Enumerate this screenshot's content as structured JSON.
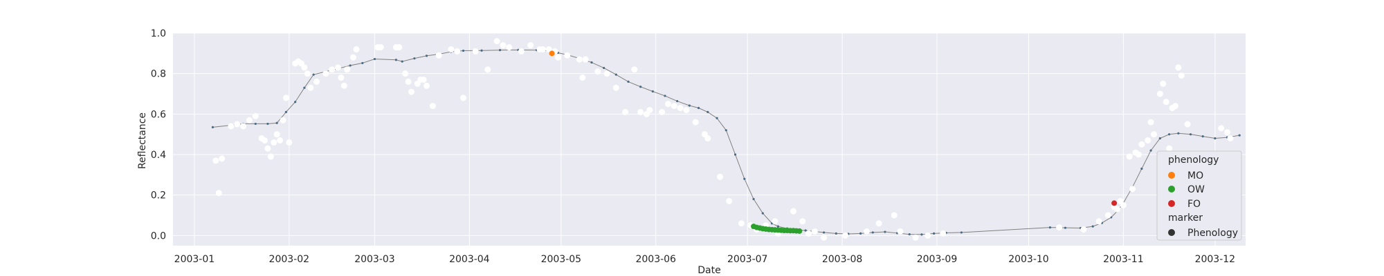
{
  "chart_data": {
    "type": "scatter",
    "xlabel": "Date",
    "ylabel": "Reflectance",
    "x_range_days": [
      -7,
      344
    ],
    "ylim": [
      -0.05,
      1.0
    ],
    "x_ticks": [
      {
        "day": 0,
        "label": "2003-01"
      },
      {
        "day": 31,
        "label": "2003-02"
      },
      {
        "day": 59,
        "label": "2003-03"
      },
      {
        "day": 90,
        "label": "2003-04"
      },
      {
        "day": 120,
        "label": "2003-05"
      },
      {
        "day": 151,
        "label": "2003-06"
      },
      {
        "day": 181,
        "label": "2003-07"
      },
      {
        "day": 212,
        "label": "2003-08"
      },
      {
        "day": 243,
        "label": "2003-09"
      },
      {
        "day": 273,
        "label": "2003-10"
      },
      {
        "day": 304,
        "label": "2003-11"
      },
      {
        "day": 334,
        "label": "2003-12"
      }
    ],
    "y_ticks": [
      {
        "value": 0.0,
        "label": "0.0"
      },
      {
        "value": 0.2,
        "label": "0.2"
      },
      {
        "value": 0.4,
        "label": "0.4"
      },
      {
        "value": 0.6,
        "label": "0.6"
      },
      {
        "value": 0.8,
        "label": "0.8"
      },
      {
        "value": 1.0,
        "label": "1.0"
      }
    ],
    "smoothed_series": {
      "color": "#4c6a80",
      "points": [
        [
          6,
          0.535
        ],
        [
          12,
          0.545
        ],
        [
          16,
          0.552
        ],
        [
          20,
          0.552
        ],
        [
          24,
          0.552
        ],
        [
          27,
          0.556
        ],
        [
          30,
          0.61
        ],
        [
          33,
          0.66
        ],
        [
          36,
          0.73
        ],
        [
          39,
          0.795
        ],
        [
          43,
          0.81
        ],
        [
          47,
          0.825
        ],
        [
          51,
          0.84
        ],
        [
          55,
          0.852
        ],
        [
          59,
          0.872
        ],
        [
          66,
          0.868
        ],
        [
          68,
          0.86
        ],
        [
          72,
          0.875
        ],
        [
          76,
          0.888
        ],
        [
          80,
          0.896
        ],
        [
          84,
          0.908
        ],
        [
          88,
          0.913
        ],
        [
          94,
          0.914
        ],
        [
          100,
          0.916
        ],
        [
          106,
          0.917
        ],
        [
          112,
          0.916
        ],
        [
          116,
          0.912
        ],
        [
          119,
          0.903
        ],
        [
          122,
          0.893
        ],
        [
          126,
          0.875
        ],
        [
          130,
          0.855
        ],
        [
          134,
          0.828
        ],
        [
          138,
          0.795
        ],
        [
          142,
          0.76
        ],
        [
          146,
          0.735
        ],
        [
          150,
          0.712
        ],
        [
          154,
          0.69
        ],
        [
          158,
          0.664
        ],
        [
          162,
          0.642
        ],
        [
          165,
          0.63
        ],
        [
          168,
          0.61
        ],
        [
          171,
          0.58
        ],
        [
          174,
          0.52
        ],
        [
          177,
          0.4
        ],
        [
          180,
          0.28
        ],
        [
          183,
          0.18
        ],
        [
          186,
          0.11
        ],
        [
          189,
          0.06
        ],
        [
          191,
          0.045
        ],
        [
          194,
          0.035
        ],
        [
          197,
          0.028
        ],
        [
          200,
          0.025
        ],
        [
          203,
          0.02
        ],
        [
          206,
          0.015
        ],
        [
          210,
          0.01
        ],
        [
          214,
          0.008
        ],
        [
          218,
          0.01
        ],
        [
          222,
          0.015
        ],
        [
          226,
          0.018
        ],
        [
          230,
          0.012
        ],
        [
          234,
          0.006
        ],
        [
          238,
          0.005
        ],
        [
          242,
          0.01
        ],
        [
          246,
          0.013
        ],
        [
          251,
          0.015
        ],
        [
          280,
          0.04
        ],
        [
          285,
          0.038
        ],
        [
          290,
          0.037
        ],
        [
          294,
          0.045
        ],
        [
          297,
          0.062
        ],
        [
          300,
          0.09
        ],
        [
          302,
          0.12
        ],
        [
          304,
          0.16
        ],
        [
          307,
          0.24
        ],
        [
          310,
          0.33
        ],
        [
          313,
          0.42
        ],
        [
          316,
          0.48
        ],
        [
          319,
          0.5
        ],
        [
          322,
          0.505
        ],
        [
          326,
          0.5
        ],
        [
          330,
          0.49
        ],
        [
          334,
          0.48
        ],
        [
          338,
          0.485
        ],
        [
          342,
          0.495
        ]
      ]
    },
    "raw_points": {
      "color": "#ffffff",
      "points": [
        [
          7,
          0.37
        ],
        [
          8,
          0.21
        ],
        [
          9,
          0.38
        ],
        [
          12,
          0.54
        ],
        [
          14,
          0.55
        ],
        [
          16,
          0.54
        ],
        [
          18,
          0.57
        ],
        [
          20,
          0.59
        ],
        [
          22,
          0.48
        ],
        [
          23,
          0.47
        ],
        [
          24,
          0.43
        ],
        [
          25,
          0.39
        ],
        [
          26,
          0.46
        ],
        [
          27,
          0.5
        ],
        [
          28,
          0.47
        ],
        [
          29,
          0.57
        ],
        [
          30,
          0.68
        ],
        [
          31,
          0.46
        ],
        [
          33,
          0.85
        ],
        [
          34,
          0.86
        ],
        [
          35,
          0.85
        ],
        [
          36,
          0.83
        ],
        [
          37,
          0.8
        ],
        [
          38,
          0.73
        ],
        [
          40,
          0.76
        ],
        [
          43,
          0.8
        ],
        [
          45,
          0.82
        ],
        [
          47,
          0.83
        ],
        [
          48,
          0.78
        ],
        [
          49,
          0.74
        ],
        [
          50,
          0.82
        ],
        [
          52,
          0.88
        ],
        [
          53,
          0.92
        ],
        [
          60,
          0.93
        ],
        [
          61,
          0.93
        ],
        [
          66,
          0.93
        ],
        [
          67,
          0.93
        ],
        [
          69,
          0.8
        ],
        [
          70,
          0.76
        ],
        [
          71,
          0.71
        ],
        [
          73,
          0.75
        ],
        [
          74,
          0.77
        ],
        [
          75,
          0.77
        ],
        [
          76,
          0.74
        ],
        [
          78,
          0.64
        ],
        [
          80,
          0.89
        ],
        [
          84,
          0.92
        ],
        [
          86,
          0.91
        ],
        [
          88,
          0.68
        ],
        [
          92,
          0.91
        ],
        [
          96,
          0.82
        ],
        [
          99,
          0.96
        ],
        [
          101,
          0.94
        ],
        [
          103,
          0.93
        ],
        [
          107,
          0.91
        ],
        [
          110,
          0.94
        ],
        [
          113,
          0.92
        ],
        [
          114,
          0.92
        ],
        [
          116,
          0.92
        ],
        [
          118,
          0.91
        ],
        [
          119,
          0.88
        ],
        [
          122,
          0.89
        ],
        [
          126,
          0.87
        ],
        [
          127,
          0.78
        ],
        [
          128,
          0.87
        ],
        [
          132,
          0.81
        ],
        [
          135,
          0.8
        ],
        [
          138,
          0.73
        ],
        [
          141,
          0.61
        ],
        [
          144,
          0.82
        ],
        [
          146,
          0.61
        ],
        [
          148,
          0.6
        ],
        [
          149,
          0.62
        ],
        [
          153,
          0.61
        ],
        [
          155,
          0.65
        ],
        [
          157,
          0.64
        ],
        [
          159,
          0.63
        ],
        [
          161,
          0.62
        ],
        [
          164,
          0.56
        ],
        [
          167,
          0.5
        ],
        [
          168,
          0.48
        ],
        [
          172,
          0.29
        ],
        [
          175,
          0.17
        ],
        [
          179,
          0.06
        ],
        [
          182,
          0.05
        ],
        [
          184,
          0.03
        ],
        [
          187,
          0.05
        ],
        [
          190,
          0.07
        ],
        [
          191,
          0.01
        ],
        [
          196,
          0.12
        ],
        [
          199,
          0.07
        ],
        [
          201,
          0.01
        ],
        [
          203,
          0.02
        ],
        [
          206,
          -0.01
        ],
        [
          213,
          0.0
        ],
        [
          220,
          0.02
        ],
        [
          224,
          0.06
        ],
        [
          229,
          0.1
        ],
        [
          231,
          0.02
        ],
        [
          236,
          -0.01
        ],
        [
          240,
          0.0
        ],
        [
          245,
          0.01
        ],
        [
          283,
          0.04
        ],
        [
          291,
          0.03
        ],
        [
          296,
          0.07
        ],
        [
          299,
          0.1
        ],
        [
          301,
          0.14
        ],
        [
          302,
          0.13
        ],
        [
          303,
          0.17
        ],
        [
          304,
          0.15
        ],
        [
          306,
          0.39
        ],
        [
          307,
          0.23
        ],
        [
          308,
          0.41
        ],
        [
          309,
          0.4
        ],
        [
          310,
          0.45
        ],
        [
          312,
          0.47
        ],
        [
          313,
          0.56
        ],
        [
          314,
          0.5
        ],
        [
          316,
          0.7
        ],
        [
          317,
          0.75
        ],
        [
          318,
          0.66
        ],
        [
          319,
          0.43
        ],
        [
          320,
          0.63
        ],
        [
          321,
          0.64
        ],
        [
          322,
          0.83
        ],
        [
          323,
          0.79
        ],
        [
          325,
          0.55
        ],
        [
          336,
          0.53
        ],
        [
          338,
          0.51
        ],
        [
          339,
          0.48
        ]
      ]
    },
    "phenology_points": [
      {
        "label": "MO",
        "color": "#ff7f0e",
        "points": [
          [
            117,
            0.9
          ]
        ]
      },
      {
        "label": "OW",
        "color": "#2ca02c",
        "points": [
          [
            183,
            0.045
          ],
          [
            184,
            0.04
          ],
          [
            185,
            0.037
          ],
          [
            186,
            0.034
          ],
          [
            187,
            0.032
          ],
          [
            188,
            0.03
          ],
          [
            189,
            0.029
          ],
          [
            190,
            0.028
          ],
          [
            191,
            0.027
          ],
          [
            192,
            0.026
          ],
          [
            193,
            0.025
          ],
          [
            194,
            0.025
          ],
          [
            195,
            0.024
          ],
          [
            196,
            0.024
          ],
          [
            197,
            0.023
          ],
          [
            198,
            0.022
          ]
        ]
      },
      {
        "label": "FO",
        "color": "#d62728",
        "points": [
          [
            301,
            0.16
          ]
        ]
      }
    ],
    "legend": {
      "position": "lower-right",
      "hue_title": "phenology",
      "hue_entries": [
        {
          "label": "MO",
          "color": "#ff7f0e"
        },
        {
          "label": "OW",
          "color": "#2ca02c"
        },
        {
          "label": "FO",
          "color": "#d62728"
        }
      ],
      "style_title": "marker",
      "style_entries": [
        {
          "label": "Phenology",
          "color": "#333333"
        }
      ]
    }
  }
}
